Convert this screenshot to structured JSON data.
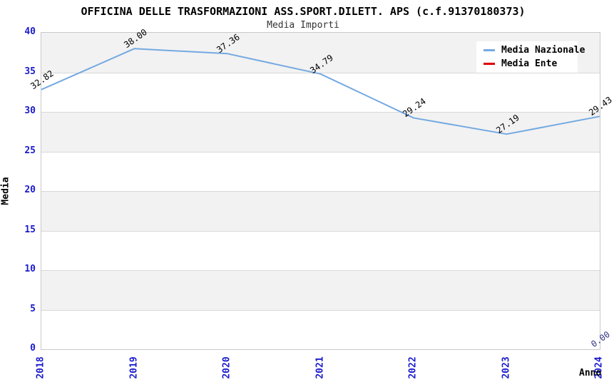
{
  "header": {
    "title": "OFFICINA DELLE TRASFORMAZIONI ASS.SPORT.DILETT. APS (c.f.91370180373)",
    "subtitle": "Media Importi"
  },
  "chart_data": {
    "type": "line",
    "x": [
      "2018",
      "2019",
      "2020",
      "2021",
      "2022",
      "2023",
      "2024"
    ],
    "series": [
      {
        "name": "Media Nazionale",
        "color": "#74a9e1",
        "label_color": "#000000",
        "values": [
          32.82,
          38.0,
          37.36,
          34.79,
          29.24,
          27.19,
          29.43
        ]
      },
      {
        "name": "Media Ente",
        "color": "#dd0000",
        "label_color": "#333388",
        "values": [
          null,
          null,
          null,
          null,
          null,
          null,
          0.0
        ]
      }
    ],
    "title": "Media Importi",
    "xlabel": "Anno",
    "ylabel": "Media",
    "ylim": [
      0,
      40
    ],
    "yticks": [
      0,
      5,
      10,
      15,
      20,
      25,
      30,
      35,
      40
    ],
    "legend_position": "top-right",
    "grid": "horizontal-bands",
    "band_colors": [
      "#ffffff",
      "#f2f2f2"
    ],
    "gridline_color": "#d8d8d8",
    "tick_label_color": "#1a1acc"
  }
}
